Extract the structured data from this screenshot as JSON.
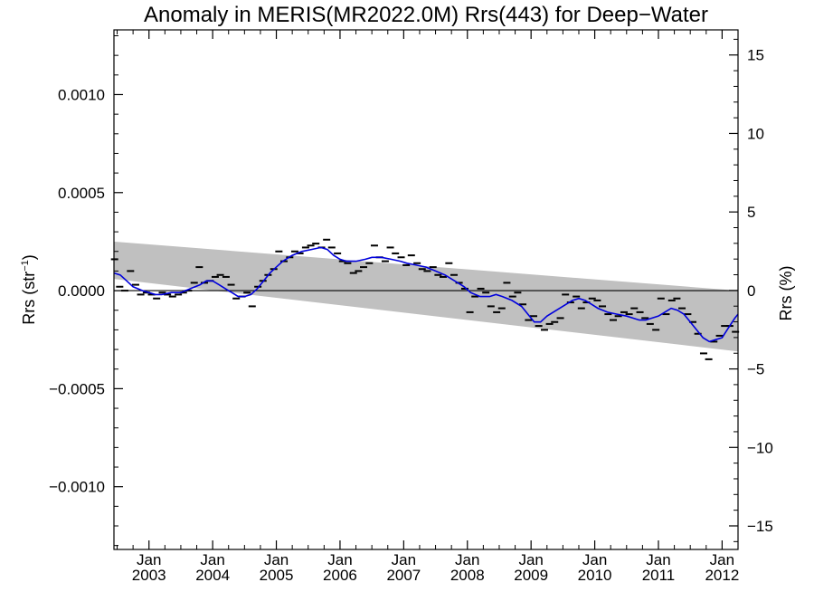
{
  "chart_data": {
    "type": "line",
    "title": "Anomaly in MERIS(MR2022.0M) Rrs(443) for Deep−Water",
    "ylabel_left": {
      "main": "Rrs (str",
      "sup": "−1",
      "end": ")"
    },
    "ylabel_right": "Rrs (%)",
    "x_range": [
      2002.45,
      2012.25
    ],
    "ylim_left": [
      -0.00132,
      0.00133
    ],
    "ylim_right": [
      -16.5,
      16.6
    ],
    "left_ticks": [
      {
        "value": 0.001,
        "label": "0.0010"
      },
      {
        "value": 0.0005,
        "label": "0.0005"
      },
      {
        "value": 0.0,
        "label": "0.0000"
      },
      {
        "value": -0.0005,
        "label": "−0.0005"
      },
      {
        "value": -0.001,
        "label": "−0.0010"
      }
    ],
    "right_ticks": [
      {
        "value": 15,
        "label": "15"
      },
      {
        "value": 10,
        "label": "10"
      },
      {
        "value": 5,
        "label": "5"
      },
      {
        "value": 0,
        "label": "0"
      },
      {
        "value": -5,
        "label": "−5"
      },
      {
        "value": -10,
        "label": "−10"
      },
      {
        "value": -15,
        "label": "−15"
      }
    ],
    "x_ticks": [
      {
        "value": 2003.0,
        "top": "Jan",
        "bottom": "2003"
      },
      {
        "value": 2004.0,
        "top": "Jan",
        "bottom": "2004"
      },
      {
        "value": 2005.0,
        "top": "Jan",
        "bottom": "2005"
      },
      {
        "value": 2006.0,
        "top": "Jan",
        "bottom": "2006"
      },
      {
        "value": 2007.0,
        "top": "Jan",
        "bottom": "2007"
      },
      {
        "value": 2008.0,
        "top": "Jan",
        "bottom": "2008"
      },
      {
        "value": 2009.0,
        "top": "Jan",
        "bottom": "2009"
      },
      {
        "value": 2010.0,
        "top": "Jan",
        "bottom": "2010"
      },
      {
        "value": 2011.0,
        "top": "Jan",
        "bottom": "2011"
      },
      {
        "value": 2012.0,
        "top": "Jan",
        "bottom": "2012"
      }
    ],
    "confidence_band": {
      "x": [
        2002.45,
        2012.25
      ],
      "upper": [
        0.00025,
        0.0
      ],
      "lower": [
        6e-05,
        -0.00031
      ]
    },
    "zero_line": 0.0,
    "colors": {
      "smooth": "#0000dd",
      "band": "#c0c0c0",
      "points": "#000000"
    },
    "monthly_points": [
      [
        2002.46,
        0.00016
      ],
      [
        2002.54,
        2e-05
      ],
      [
        2002.62,
        0.0
      ],
      [
        2002.71,
        0.0001
      ],
      [
        2002.79,
        3e-05
      ],
      [
        2002.87,
        -2e-05
      ],
      [
        2002.96,
        -1e-05
      ],
      [
        2003.04,
        -2e-05
      ],
      [
        2003.12,
        -4e-05
      ],
      [
        2003.21,
        -1e-05
      ],
      [
        2003.29,
        -2e-05
      ],
      [
        2003.37,
        -3e-05
      ],
      [
        2003.46,
        -2e-05
      ],
      [
        2003.54,
        -1e-05
      ],
      [
        2003.62,
        0.0
      ],
      [
        2003.71,
        4e-05
      ],
      [
        2003.79,
        0.00012
      ],
      [
        2003.87,
        4e-05
      ],
      [
        2003.96,
        5e-05
      ],
      [
        2004.04,
        7e-05
      ],
      [
        2004.12,
        8e-05
      ],
      [
        2004.21,
        7e-05
      ],
      [
        2004.29,
        3e-05
      ],
      [
        2004.37,
        -4e-05
      ],
      [
        2004.46,
        -3e-05
      ],
      [
        2004.54,
        -1e-05
      ],
      [
        2004.62,
        -8e-05
      ],
      [
        2004.71,
        2e-05
      ],
      [
        2004.79,
        5e-05
      ],
      [
        2004.87,
        8e-05
      ],
      [
        2004.96,
        0.00011
      ],
      [
        2005.04,
        0.0002
      ],
      [
        2005.12,
        0.00015
      ],
      [
        2005.21,
        0.00017
      ],
      [
        2005.29,
        0.0002
      ],
      [
        2005.37,
        0.00019
      ],
      [
        2005.46,
        0.00022
      ],
      [
        2005.54,
        0.00023
      ],
      [
        2005.62,
        0.00024
      ],
      [
        2005.71,
        0.00022
      ],
      [
        2005.79,
        0.00026
      ],
      [
        2005.87,
        0.00022
      ],
      [
        2005.96,
        0.00019
      ],
      [
        2006.04,
        0.00015
      ],
      [
        2006.12,
        0.00014
      ],
      [
        2006.21,
        9e-05
      ],
      [
        2006.29,
        0.0001
      ],
      [
        2006.37,
        0.00012
      ],
      [
        2006.46,
        0.00014
      ],
      [
        2006.54,
        0.00023
      ],
      [
        2006.62,
        0.00017
      ],
      [
        2006.71,
        0.00015
      ],
      [
        2006.79,
        0.00022
      ],
      [
        2006.87,
        0.00019
      ],
      [
        2006.96,
        0.00017
      ],
      [
        2007.04,
        0.00013
      ],
      [
        2007.12,
        0.00018
      ],
      [
        2007.21,
        0.00014
      ],
      [
        2007.29,
        0.00011
      ],
      [
        2007.37,
        0.0001
      ],
      [
        2007.46,
        0.00012
      ],
      [
        2007.54,
        8e-05
      ],
      [
        2007.62,
        7e-05
      ],
      [
        2007.71,
        0.00014
      ],
      [
        2007.79,
        8e-05
      ],
      [
        2007.87,
        4e-05
      ],
      [
        2007.96,
        1e-05
      ],
      [
        2008.04,
        -0.00011
      ],
      [
        2008.12,
        -3e-05
      ],
      [
        2008.21,
        1e-05
      ],
      [
        2008.29,
        -1e-05
      ],
      [
        2008.37,
        -8e-05
      ],
      [
        2008.46,
        -0.00011
      ],
      [
        2008.54,
        -9e-05
      ],
      [
        2008.62,
        4e-05
      ],
      [
        2008.71,
        -3e-05
      ],
      [
        2008.79,
        -1e-05
      ],
      [
        2008.87,
        -7e-05
      ],
      [
        2008.96,
        -0.00015
      ],
      [
        2009.04,
        -0.00013
      ],
      [
        2009.12,
        -0.00018
      ],
      [
        2009.21,
        -0.0002
      ],
      [
        2009.29,
        -0.00017
      ],
      [
        2009.37,
        -0.00016
      ],
      [
        2009.46,
        -0.00014
      ],
      [
        2009.54,
        -2e-05
      ],
      [
        2009.62,
        -6e-05
      ],
      [
        2009.71,
        -3e-05
      ],
      [
        2009.79,
        -9e-05
      ],
      [
        2009.87,
        -6e-05
      ],
      [
        2009.96,
        -4e-05
      ],
      [
        2010.04,
        -5e-05
      ],
      [
        2010.12,
        -8e-05
      ],
      [
        2010.21,
        -0.00012
      ],
      [
        2010.29,
        -0.00015
      ],
      [
        2010.37,
        -0.00013
      ],
      [
        2010.46,
        -0.00011
      ],
      [
        2010.54,
        -0.00012
      ],
      [
        2010.62,
        -9e-05
      ],
      [
        2010.71,
        -0.00011
      ],
      [
        2010.79,
        -0.00014
      ],
      [
        2010.87,
        -0.00017
      ],
      [
        2010.96,
        -0.0002
      ],
      [
        2011.04,
        -4e-05
      ],
      [
        2011.12,
        -0.00012
      ],
      [
        2011.21,
        -5e-05
      ],
      [
        2011.29,
        -4e-05
      ],
      [
        2011.37,
        -9e-05
      ],
      [
        2011.46,
        -0.00012
      ],
      [
        2011.54,
        -0.00016
      ],
      [
        2011.62,
        -0.00022
      ],
      [
        2011.71,
        -0.00032
      ],
      [
        2011.79,
        -0.00035
      ],
      [
        2011.87,
        -0.00026
      ],
      [
        2011.96,
        -0.00023
      ],
      [
        2012.04,
        -0.00018
      ],
      [
        2012.12,
        -0.00018
      ],
      [
        2012.21,
        -0.00021
      ]
    ],
    "smoothed_series": [
      [
        2002.45,
        9e-05
      ],
      [
        2002.55,
        8e-05
      ],
      [
        2002.65,
        5e-05
      ],
      [
        2002.75,
        2e-05
      ],
      [
        2002.9,
        0.0
      ],
      [
        2003.0,
        -1e-05
      ],
      [
        2003.1,
        -2e-05
      ],
      [
        2003.2,
        -2e-05
      ],
      [
        2003.35,
        -1e-05
      ],
      [
        2003.5,
        -1e-05
      ],
      [
        2003.65,
        1e-05
      ],
      [
        2003.8,
        3e-05
      ],
      [
        2003.9,
        5e-05
      ],
      [
        2004.0,
        5e-05
      ],
      [
        2004.1,
        3e-05
      ],
      [
        2004.2,
        1e-05
      ],
      [
        2004.3,
        -1e-05
      ],
      [
        2004.4,
        -3e-05
      ],
      [
        2004.5,
        -3e-05
      ],
      [
        2004.6,
        -2e-05
      ],
      [
        2004.7,
        1e-05
      ],
      [
        2004.8,
        5e-05
      ],
      [
        2004.9,
        9e-05
      ],
      [
        2005.0,
        0.00012
      ],
      [
        2005.1,
        0.00015
      ],
      [
        2005.25,
        0.00018
      ],
      [
        2005.4,
        0.0002
      ],
      [
        2005.55,
        0.00021
      ],
      [
        2005.7,
        0.00022
      ],
      [
        2005.8,
        0.00021
      ],
      [
        2005.9,
        0.00018
      ],
      [
        2006.0,
        0.00016
      ],
      [
        2006.1,
        0.00015
      ],
      [
        2006.25,
        0.00015
      ],
      [
        2006.4,
        0.00016
      ],
      [
        2006.5,
        0.00017
      ],
      [
        2006.65,
        0.00017
      ],
      [
        2006.8,
        0.00016
      ],
      [
        2006.95,
        0.00015
      ],
      [
        2007.05,
        0.00014
      ],
      [
        2007.2,
        0.00013
      ],
      [
        2007.35,
        0.00012
      ],
      [
        2007.5,
        0.0001
      ],
      [
        2007.65,
        8e-05
      ],
      [
        2007.8,
        5e-05
      ],
      [
        2007.95,
        2e-05
      ],
      [
        2008.05,
        -1e-05
      ],
      [
        2008.2,
        -3e-05
      ],
      [
        2008.35,
        -3e-05
      ],
      [
        2008.45,
        -2e-05
      ],
      [
        2008.55,
        -3e-05
      ],
      [
        2008.7,
        -5e-05
      ],
      [
        2008.85,
        -8e-05
      ],
      [
        2008.95,
        -0.00012
      ],
      [
        2009.05,
        -0.00016
      ],
      [
        2009.15,
        -0.00016
      ],
      [
        2009.25,
        -0.00013
      ],
      [
        2009.4,
        -0.0001
      ],
      [
        2009.55,
        -7e-05
      ],
      [
        2009.65,
        -5e-05
      ],
      [
        2009.75,
        -4e-05
      ],
      [
        2009.85,
        -5e-05
      ],
      [
        2009.95,
        -7e-05
      ],
      [
        2010.05,
        -9e-05
      ],
      [
        2010.2,
        -0.00011
      ],
      [
        2010.35,
        -0.00012
      ],
      [
        2010.5,
        -0.00013
      ],
      [
        2010.6,
        -0.00014
      ],
      [
        2010.7,
        -0.00015
      ],
      [
        2010.8,
        -0.00015
      ],
      [
        2010.9,
        -0.00014
      ],
      [
        2011.0,
        -0.00013
      ],
      [
        2011.1,
        -0.00011
      ],
      [
        2011.2,
        -9e-05
      ],
      [
        2011.3,
        -0.0001
      ],
      [
        2011.4,
        -0.00012
      ],
      [
        2011.5,
        -0.00016
      ],
      [
        2011.6,
        -0.0002
      ],
      [
        2011.7,
        -0.00024
      ],
      [
        2011.8,
        -0.00026
      ],
      [
        2011.9,
        -0.00025
      ],
      [
        2012.0,
        -0.00024
      ],
      [
        2012.1,
        -0.00019
      ],
      [
        2012.2,
        -0.00014
      ],
      [
        2012.25,
        -0.00012
      ]
    ]
  }
}
